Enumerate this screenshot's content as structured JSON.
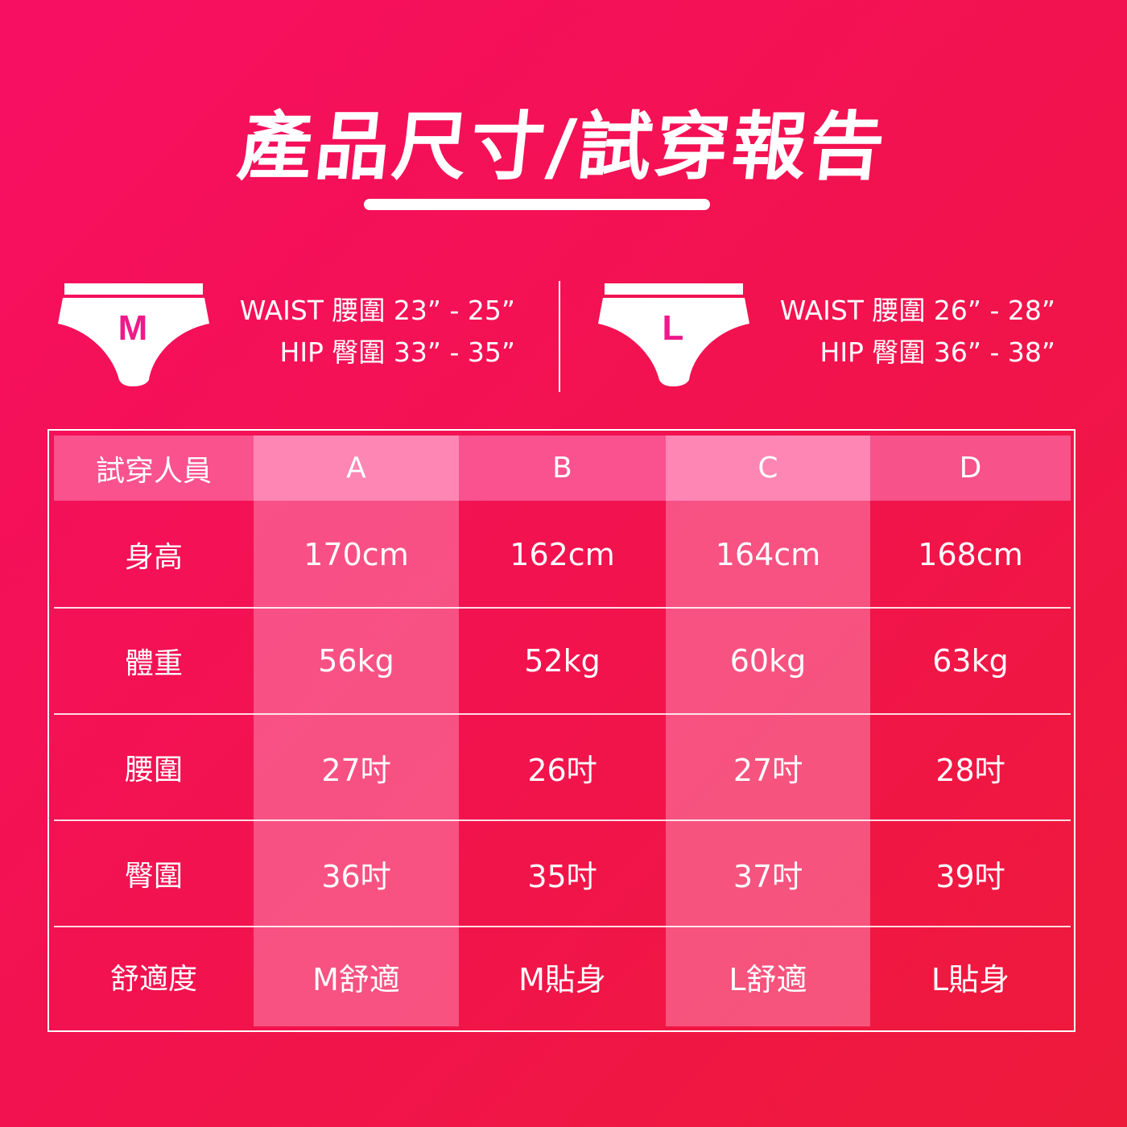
{
  "title": "產品尺寸/試穿報告",
  "sizes": [
    {
      "label": "M",
      "waist": "WAIST 腰圍 23” - 25”",
      "hip": "HIP 臀圍 33” - 35”"
    },
    {
      "label": "L",
      "waist": "WAIST 腰圍 26” - 28”",
      "hip": "HIP 臀圍 36” - 38”"
    }
  ],
  "table": {
    "headers": [
      "試穿人員",
      "A",
      "B",
      "C",
      "D"
    ],
    "rows": [
      {
        "label": "身高",
        "values": [
          "170cm",
          "162cm",
          "164cm",
          "168cm"
        ]
      },
      {
        "label": "體重",
        "values": [
          "56kg",
          "52kg",
          "60kg",
          "63kg"
        ]
      },
      {
        "label": "腰圍",
        "values": [
          "27吋",
          "26吋",
          "27吋",
          "28吋"
        ]
      },
      {
        "label": "臀圍",
        "values": [
          "36吋",
          "35吋",
          "37吋",
          "39吋"
        ]
      },
      {
        "label": "舒適度",
        "values": [
          "M舒適",
          "M貼身",
          "L舒適",
          "L貼身"
        ]
      }
    ]
  },
  "colors": {
    "background": "#f2124f",
    "size_letter": "#ee1a8a",
    "header_light": "#fd86b4",
    "header_dark": "#f9528c"
  }
}
